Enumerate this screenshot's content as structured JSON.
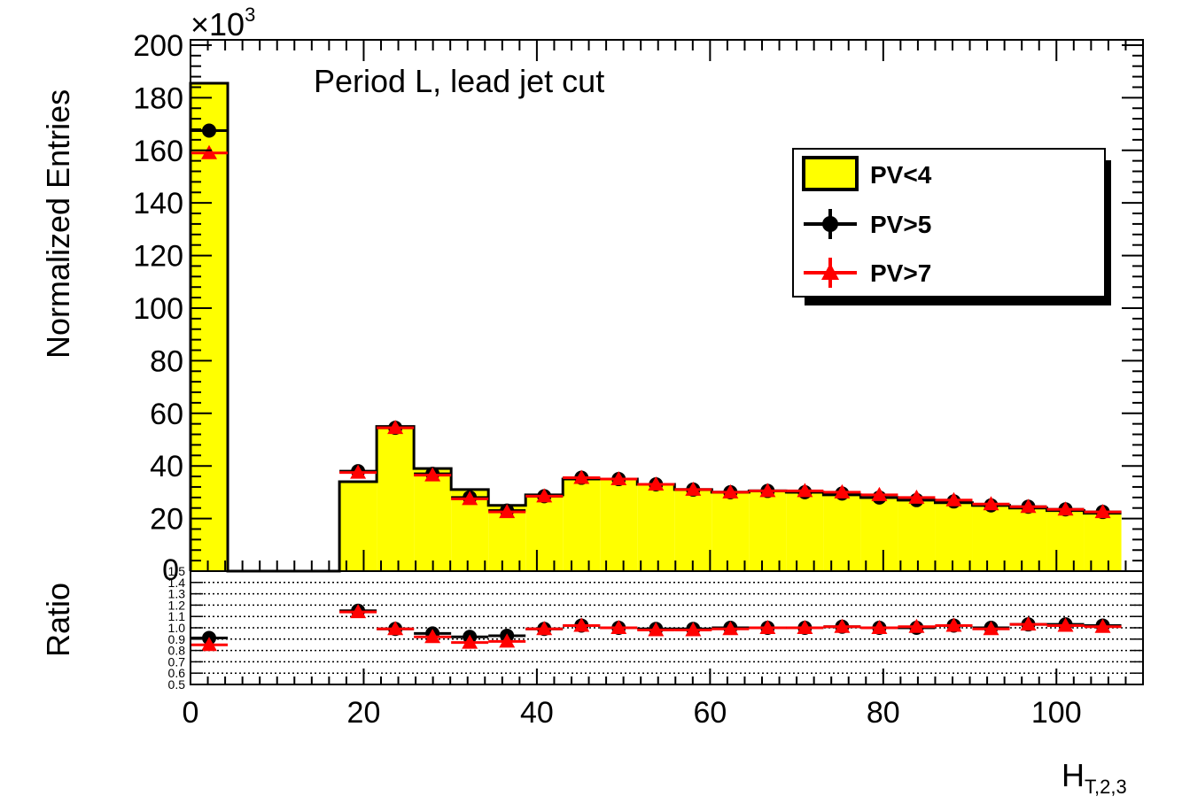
{
  "chart_data": {
    "type": "histogram",
    "multiplier_label": "×10",
    "multiplier_exponent": "3",
    "annotation": "Period L, lead jet cut",
    "xlabel_main": "H",
    "xlabel_sub": "T,2,3",
    "ylabel": "Normalized Entries",
    "ratio_ylabel": "Ratio",
    "xlim": [
      0,
      110
    ],
    "ylim": [
      0,
      202
    ],
    "ratio_ylim": [
      0.5,
      1.5
    ],
    "bin_width": 4.3,
    "x_ticks": [
      "0",
      "20",
      "40",
      "60",
      "80",
      "100"
    ],
    "y_ticks": [
      "20",
      "40",
      "60",
      "80",
      "100",
      "120",
      "140",
      "160",
      "180",
      "200"
    ],
    "ratio_ticks": [
      "0.5",
      "0.6",
      "0.7",
      "0.8",
      "0.9",
      "1.0",
      "1.1",
      "1.2",
      "1.3",
      "1.4",
      "1.5"
    ],
    "ratio_gridlines": [
      0.6,
      0.7,
      0.8,
      0.9,
      1.0,
      1.1,
      1.2,
      1.3,
      1.4
    ],
    "zero_label": "0",
    "legend": [
      {
        "label": "PV<4",
        "style": "fill",
        "color": "#ffff00"
      },
      {
        "label": "PV>5",
        "style": "circle",
        "color": "#000000"
      },
      {
        "label": "PV>7",
        "style": "triangle",
        "color": "#ff0000"
      }
    ],
    "series": [
      {
        "label": "PV<4",
        "x_start": 0,
        "values": [
          185.5,
          0,
          0,
          0,
          34,
          55,
          39,
          31,
          25,
          29,
          35,
          35,
          33,
          31,
          30,
          30.5,
          30,
          29,
          28,
          27,
          26,
          25,
          24,
          23,
          22
        ]
      },
      {
        "label": "PV>5",
        "x_start": 0,
        "values": [
          167.5,
          null,
          null,
          null,
          38,
          54.5,
          37,
          28,
          23,
          28.5,
          35.5,
          35,
          33,
          31,
          30,
          30.5,
          30,
          29.5,
          28,
          27,
          26.5,
          25,
          24.5,
          23.5,
          22.5
        ]
      },
      {
        "label": "PV>7",
        "x_start": 0,
        "values": [
          159,
          null,
          null,
          null,
          37.5,
          54.5,
          36.5,
          27.5,
          22.5,
          28.5,
          35.5,
          35,
          33,
          31,
          30,
          30.5,
          30.5,
          30,
          29,
          28,
          27,
          25.5,
          24.5,
          23.5,
          22.5
        ]
      }
    ],
    "ratio_series": [
      {
        "label": "PV>5",
        "values": [
          0.91,
          null,
          null,
          null,
          1.15,
          0.99,
          0.95,
          0.92,
          0.93,
          0.99,
          1.02,
          1.0,
          0.99,
          0.99,
          1.0,
          1.0,
          1.0,
          1.01,
          1.0,
          1.0,
          1.02,
          1.0,
          1.03,
          1.03,
          1.02
        ]
      },
      {
        "label": "PV>7",
        "values": [
          0.85,
          null,
          null,
          null,
          1.14,
          0.99,
          0.92,
          0.87,
          0.88,
          0.99,
          1.02,
          1.0,
          0.98,
          0.98,
          0.99,
          1.0,
          1.0,
          1.01,
          1.0,
          1.01,
          1.02,
          0.99,
          1.03,
          1.02,
          1.01
        ]
      }
    ]
  }
}
